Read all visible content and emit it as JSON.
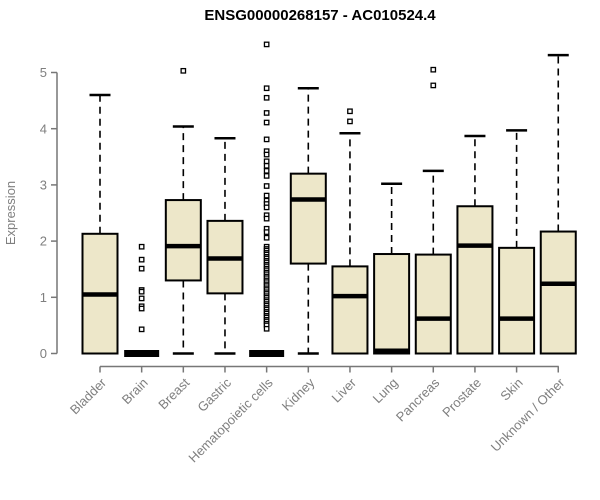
{
  "chart_data": {
    "type": "boxplot",
    "title": "ENSG00000268157 - AC010524.4",
    "xlabel": "",
    "ylabel": "Expression",
    "ylim": [
      0,
      5.6
    ],
    "yticks": [
      0,
      1,
      2,
      3,
      4,
      5
    ],
    "grid": false,
    "legend": "none",
    "categories": [
      "Bladder",
      "Brain",
      "Breast",
      "Gastric",
      "Hematopoietic cells",
      "Kidney",
      "Liver",
      "Lung",
      "Pancreas",
      "Prostate",
      "Skin",
      "Unknown / Other"
    ],
    "series": [
      {
        "label": "Bladder",
        "whisker_low": 0,
        "q1": 0,
        "median": 1.05,
        "q3": 2.13,
        "whisker_high": 4.6,
        "outliers": []
      },
      {
        "label": "Brain",
        "whisker_low": 0,
        "q1": 0,
        "median": 0,
        "q3": 0,
        "whisker_high": 0,
        "outliers": [
          1.9,
          1.67,
          1.51,
          1.13,
          1.1,
          0.98,
          0.84,
          0.8,
          0.43
        ]
      },
      {
        "label": "Breast",
        "whisker_low": 0,
        "q1": 1.3,
        "median": 1.91,
        "q3": 2.73,
        "whisker_high": 4.04,
        "outliers": [
          5.03
        ]
      },
      {
        "label": "Gastric",
        "whisker_low": 0,
        "q1": 1.07,
        "median": 1.69,
        "q3": 2.36,
        "whisker_high": 3.83,
        "outliers": []
      },
      {
        "label": "Hematopoietic cells",
        "whisker_low": 0,
        "q1": 0,
        "median": 0,
        "q3": 0,
        "whisker_high": 0,
        "outliers": [
          5.5,
          4.72,
          4.55,
          4.28,
          4.11,
          3.81,
          3.6,
          3.54,
          3.42,
          3.34,
          3.25,
          3.16,
          2.98,
          2.81,
          2.72,
          2.66,
          2.6,
          2.46,
          2.4,
          2.22,
          2.16,
          2.06,
          1.9,
          1.86,
          1.83,
          1.79,
          1.76,
          1.72,
          1.69,
          1.65,
          1.62,
          1.58,
          1.55,
          1.51,
          1.48,
          1.44,
          1.41,
          1.37,
          1.34,
          1.3,
          1.27,
          1.23,
          1.2,
          1.16,
          1.13,
          1.09,
          1.06,
          1.02,
          0.99,
          0.95,
          0.92,
          0.88,
          0.85,
          0.81,
          0.78,
          0.74,
          0.71,
          0.67,
          0.64,
          0.6,
          0.57,
          0.53,
          0.5,
          0.44
        ]
      },
      {
        "label": "Kidney",
        "whisker_low": 0,
        "q1": 1.6,
        "median": 2.74,
        "q3": 3.2,
        "whisker_high": 4.72,
        "outliers": []
      },
      {
        "label": "Liver",
        "whisker_low": 0,
        "q1": 0,
        "median": 1.02,
        "q3": 1.55,
        "whisker_high": 3.92,
        "outliers": [
          4.31,
          4.13
        ]
      },
      {
        "label": "Lung",
        "whisker_low": 0,
        "q1": 0,
        "median": 0.05,
        "q3": 1.77,
        "whisker_high": 3.02,
        "outliers": []
      },
      {
        "label": "Pancreas",
        "whisker_low": 0,
        "q1": 0,
        "median": 0.62,
        "q3": 1.76,
        "whisker_high": 3.25,
        "outliers": [
          5.05,
          4.77
        ]
      },
      {
        "label": "Prostate",
        "whisker_low": 0,
        "q1": 0,
        "median": 1.92,
        "q3": 2.62,
        "whisker_high": 3.87,
        "outliers": []
      },
      {
        "label": "Skin",
        "whisker_low": 0,
        "q1": 0,
        "median": 0.62,
        "q3": 1.88,
        "whisker_high": 3.97,
        "outliers": []
      },
      {
        "label": "Unknown / Other",
        "whisker_low": 0,
        "q1": 0,
        "median": 1.24,
        "q3": 2.17,
        "whisker_high": 5.31,
        "outliers": []
      }
    ],
    "colors": {
      "box_fill": "#EDE7C9",
      "box_stroke": "#000000",
      "median": "#000000",
      "whisker": "#000000",
      "outlier_stroke": "#000000",
      "axis_line": "#777777",
      "axis_text": "#7F7F7F",
      "title_text": "#000000"
    }
  }
}
